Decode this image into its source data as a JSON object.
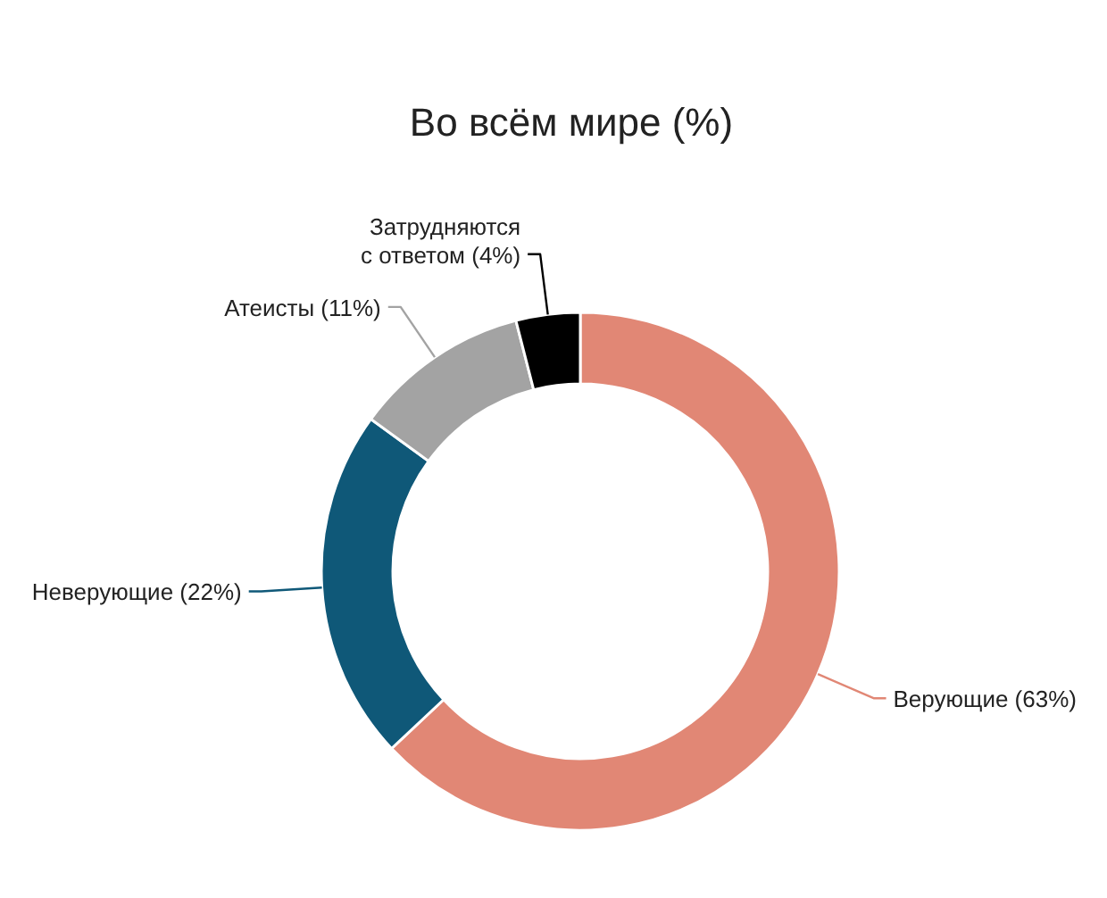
{
  "chart_data": {
    "type": "donut",
    "title": "Во всём мире (%)",
    "categories": [
      "Верующие",
      "Неверующие",
      "Атеисты",
      "Затрудняются с ответом"
    ],
    "values": [
      63,
      22,
      11,
      4
    ],
    "colors": [
      "#e18775",
      "#0f5878",
      "#a3a3a3",
      "#000000"
    ],
    "value_labels": [
      "(63%)",
      "(22%)",
      "(11%)",
      "(4%)"
    ]
  }
}
